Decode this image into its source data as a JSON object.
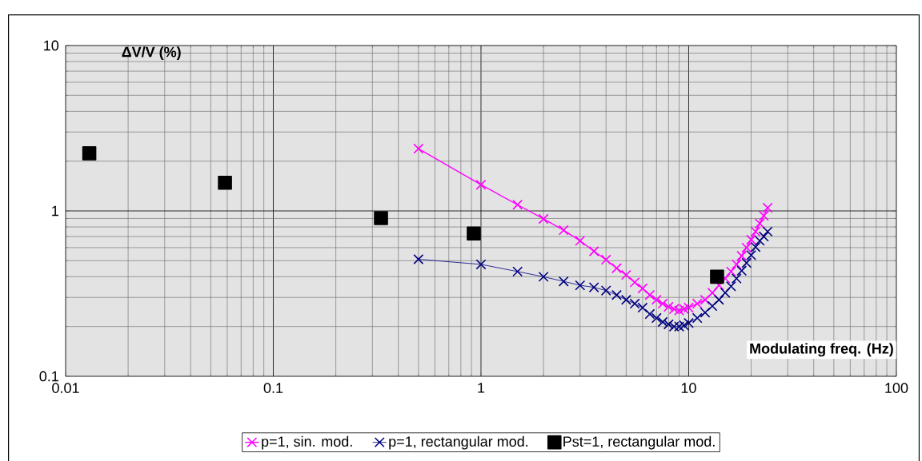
{
  "chart_data": {
    "type": "line",
    "xlabel": "Modulating freq. (Hz)",
    "ylabel": "ΔV/V (%)",
    "log": "xy",
    "grid": true,
    "legend": "bottom",
    "xlim": [
      0.01,
      100
    ],
    "ylim": [
      0.1,
      10
    ],
    "xticks": [
      0.01,
      0.1,
      1,
      10,
      100
    ],
    "yticks": [
      0.1,
      1,
      10
    ],
    "series": [
      {
        "name": "p=1, sin. mod.",
        "color": "#ff00ff",
        "marker": "cross",
        "x": [
          0.5,
          1,
          1.5,
          2,
          2.5,
          3,
          3.5,
          4,
          4.5,
          5,
          5.5,
          6,
          6.5,
          7,
          7.5,
          8,
          8.5,
          9,
          9.5,
          10,
          11,
          12,
          13,
          14,
          15,
          16,
          17,
          18,
          19,
          20,
          21,
          22,
          23,
          24
        ],
        "values": [
          2.38,
          1.44,
          1.09,
          0.895,
          0.765,
          0.66,
          0.57,
          0.507,
          0.45,
          0.41,
          0.37,
          0.34,
          0.31,
          0.29,
          0.275,
          0.263,
          0.255,
          0.25,
          0.255,
          0.26,
          0.275,
          0.29,
          0.32,
          0.355,
          0.39,
          0.43,
          0.475,
          0.535,
          0.6,
          0.67,
          0.75,
          0.84,
          0.935,
          1.045
        ]
      },
      {
        "name": "p=1, rectangular mod.",
        "color": "#000080",
        "marker": "cross",
        "x": [
          0.5,
          1,
          1.5,
          2,
          2.5,
          3,
          3.5,
          4,
          4.5,
          5,
          5.5,
          6,
          6.5,
          7,
          7.5,
          8,
          8.5,
          9,
          9.5,
          10,
          11,
          12,
          13,
          14,
          15,
          16,
          17,
          18,
          19,
          20,
          21,
          22,
          23,
          24
        ],
        "values": [
          0.51,
          0.475,
          0.43,
          0.4,
          0.375,
          0.355,
          0.345,
          0.33,
          0.31,
          0.29,
          0.275,
          0.26,
          0.238,
          0.225,
          0.213,
          0.206,
          0.2,
          0.2,
          0.203,
          0.21,
          0.225,
          0.243,
          0.266,
          0.29,
          0.32,
          0.35,
          0.39,
          0.435,
          0.485,
          0.54,
          0.605,
          0.66,
          0.7,
          0.75
        ]
      },
      {
        "name": "Pst=1, rectangular mod.",
        "type": "scatter",
        "color": "#000000",
        "marker": "square",
        "x": [
          0.013,
          0.0585,
          0.33,
          0.923,
          13.7
        ],
        "values": [
          2.23,
          1.48,
          0.905,
          0.73,
          0.4
        ]
      }
    ]
  }
}
